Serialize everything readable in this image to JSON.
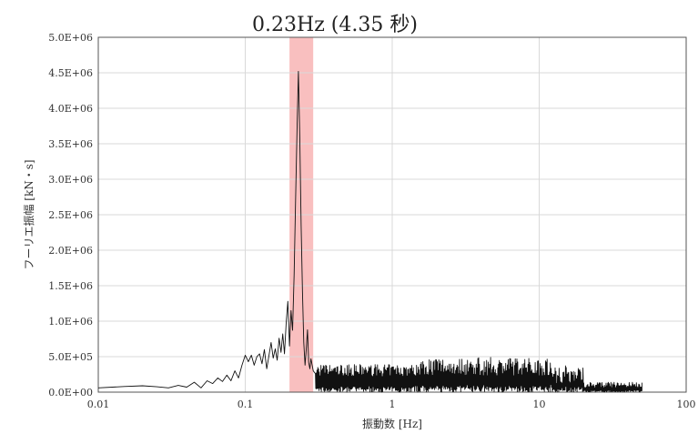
{
  "chart_data": {
    "type": "line",
    "title": "0.23Hz (4.35 秒)",
    "xlabel": "振動数 [Hz]",
    "ylabel": "フーリエ振幅 [kN・s]",
    "x_scale": "log",
    "xlim": [
      0.01,
      100
    ],
    "ylim": [
      0,
      5000000
    ],
    "x_ticks": [
      0.01,
      0.1,
      1,
      10,
      100
    ],
    "x_tick_labels": [
      "0.01",
      "0.1",
      "1",
      "10",
      "100"
    ],
    "y_ticks": [
      0,
      500000,
      1000000,
      1500000,
      2000000,
      2500000,
      3000000,
      3500000,
      4000000,
      4500000,
      5000000
    ],
    "y_tick_labels": [
      "0.0E+00",
      "5.0E+05",
      "1.0E+06",
      "1.5E+06",
      "2.0E+06",
      "2.5E+06",
      "3.0E+06",
      "3.5E+06",
      "4.0E+06",
      "4.5E+06",
      "5.0E+06"
    ],
    "grid": true,
    "highlight_band": {
      "x_range": [
        0.2,
        0.29
      ],
      "color": "#f8b4b4"
    },
    "series": [
      {
        "color": "#111111",
        "peak": {
          "x": 0.23,
          "y": 4520000
        },
        "x": [
          0.01,
          0.015,
          0.02,
          0.025,
          0.03,
          0.035,
          0.04,
          0.045,
          0.05,
          0.055,
          0.06,
          0.065,
          0.07,
          0.075,
          0.08,
          0.085,
          0.09,
          0.095,
          0.1,
          0.105,
          0.11,
          0.115,
          0.12,
          0.125,
          0.13,
          0.135,
          0.14,
          0.145,
          0.15,
          0.155,
          0.16,
          0.165,
          0.17,
          0.175,
          0.18,
          0.185,
          0.19,
          0.195,
          0.2,
          0.205,
          0.21,
          0.215,
          0.22,
          0.225,
          0.23,
          0.235,
          0.24,
          0.245,
          0.25,
          0.255,
          0.26,
          0.265,
          0.27,
          0.275,
          0.28,
          0.29,
          0.3
        ],
        "y": [
          60000,
          80000,
          90000,
          75000,
          60000,
          95000,
          70000,
          140000,
          60000,
          160000,
          120000,
          200000,
          150000,
          240000,
          160000,
          300000,
          200000,
          380000,
          520000,
          430000,
          520000,
          380000,
          500000,
          540000,
          400000,
          600000,
          330000,
          520000,
          700000,
          480000,
          610000,
          450000,
          760000,
          560000,
          820000,
          540000,
          980000,
          1280000,
          650000,
          1150000,
          870000,
          1650000,
          2700000,
          3700000,
          4520000,
          3600000,
          2350000,
          1400000,
          700000,
          380000,
          600000,
          880000,
          420000,
          330000,
          470000,
          300000,
          260000
        ],
        "noise_segment": {
          "x_range": [
            0.3,
            50
          ],
          "y_range": [
            0,
            500000
          ]
        }
      }
    ]
  }
}
